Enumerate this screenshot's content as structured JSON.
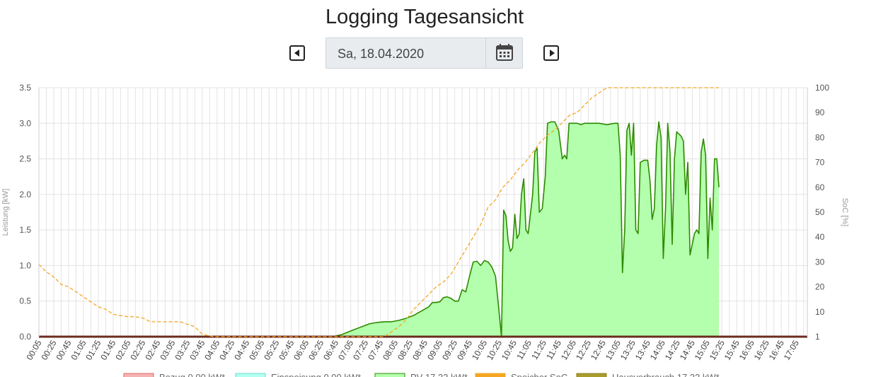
{
  "page": {
    "title": "Logging Tagesansicht"
  },
  "date_nav": {
    "date_value": "Sa, 18.04.2020"
  },
  "icons": {
    "prev": "caret-left-square-icon",
    "next": "caret-right-square-icon",
    "calendar": "calendar-icon"
  },
  "colors": {
    "pv_line": "#2e8b00",
    "pv_fill": "#b3ffad",
    "soc_line": "#f5a623",
    "grid": "#e3e3e3",
    "baseline": "#6b2b20"
  },
  "chart_data": {
    "type": "area",
    "ylabel": "Leistung [kW]",
    "y2label": "SoC [%]",
    "ylim": [
      0,
      3.5
    ],
    "y2lim": [
      0,
      100
    ],
    "y_ticks": [
      "0.0",
      "0.5",
      "1.0",
      "1.5",
      "2.0",
      "2.5",
      "3.0",
      "3.5"
    ],
    "y2_ticks": [
      "1",
      "10",
      "20",
      "30",
      "40",
      "50",
      "60",
      "70",
      "80",
      "90",
      "100"
    ],
    "x_ticks": [
      "00:05",
      "00:25",
      "00:45",
      "01:05",
      "01:25",
      "01:45",
      "02:05",
      "02:25",
      "02:45",
      "03:05",
      "03:25",
      "03:45",
      "04:05",
      "04:25",
      "04:45",
      "05:05",
      "05:25",
      "05:45",
      "06:05",
      "06:25",
      "06:45",
      "07:05",
      "07:25",
      "07:45",
      "08:05",
      "08:25",
      "08:45",
      "09:05",
      "09:25",
      "09:45",
      "10:05",
      "10:25",
      "10:45",
      "11:05",
      "11:25",
      "11:45",
      "12:05",
      "12:25",
      "12:45",
      "13:05",
      "13:25",
      "13:45",
      "14:05",
      "14:25",
      "14:45",
      "15:05",
      "15:25",
      "15:45",
      "16:05",
      "16:25",
      "16:45",
      "17:05"
    ],
    "x_range_minutes": [
      5,
      1040
    ],
    "series": [
      {
        "name": "PV",
        "axis": "left",
        "points": [
          [
            5,
            0
          ],
          [
            400,
            0
          ],
          [
            413,
            0.03
          ],
          [
            420,
            0.06
          ],
          [
            430,
            0.1
          ],
          [
            440,
            0.14
          ],
          [
            450,
            0.18
          ],
          [
            460,
            0.2
          ],
          [
            470,
            0.21
          ],
          [
            480,
            0.21
          ],
          [
            490,
            0.23
          ],
          [
            500,
            0.26
          ],
          [
            510,
            0.3
          ],
          [
            520,
            0.36
          ],
          [
            530,
            0.42
          ],
          [
            535,
            0.48
          ],
          [
            540,
            0.48
          ],
          [
            545,
            0.49
          ],
          [
            550,
            0.55
          ],
          [
            555,
            0.56
          ],
          [
            560,
            0.54
          ],
          [
            565,
            0.5
          ],
          [
            570,
            0.5
          ],
          [
            575,
            0.66
          ],
          [
            580,
            0.63
          ],
          [
            585,
            0.85
          ],
          [
            590,
            1.05
          ],
          [
            595,
            1.06
          ],
          [
            600,
            1.0
          ],
          [
            605,
            1.07
          ],
          [
            610,
            1.05
          ],
          [
            615,
            0.98
          ],
          [
            620,
            0.85
          ],
          [
            625,
            0.32
          ],
          [
            628,
            0.0
          ],
          [
            631,
            1.78
          ],
          [
            634,
            1.7
          ],
          [
            637,
            1.35
          ],
          [
            640,
            1.2
          ],
          [
            643,
            1.25
          ],
          [
            646,
            1.72
          ],
          [
            649,
            1.38
          ],
          [
            652,
            1.45
          ],
          [
            655,
            2.0
          ],
          [
            658,
            2.22
          ],
          [
            661,
            1.5
          ],
          [
            664,
            1.45
          ],
          [
            670,
            2.0
          ],
          [
            673,
            2.6
          ],
          [
            676,
            2.65
          ],
          [
            679,
            1.75
          ],
          [
            683,
            1.8
          ],
          [
            687,
            2.25
          ],
          [
            690,
            3.0
          ],
          [
            695,
            3.02
          ],
          [
            700,
            3.02
          ],
          [
            705,
            2.9
          ],
          [
            710,
            2.5
          ],
          [
            713,
            2.55
          ],
          [
            716,
            2.5
          ],
          [
            719,
            3.0
          ],
          [
            725,
            3.0
          ],
          [
            730,
            3.0
          ],
          [
            735,
            2.98
          ],
          [
            740,
            3.0
          ],
          [
            750,
            3.0
          ],
          [
            760,
            3.0
          ],
          [
            770,
            2.98
          ],
          [
            780,
            3.0
          ],
          [
            785,
            3.0
          ],
          [
            788,
            2.55
          ],
          [
            791,
            0.9
          ],
          [
            794,
            1.5
          ],
          [
            797,
            2.9
          ],
          [
            800,
            3.0
          ],
          [
            803,
            2.55
          ],
          [
            806,
            3.0
          ],
          [
            809,
            1.5
          ],
          [
            812,
            1.45
          ],
          [
            815,
            2.45
          ],
          [
            820,
            2.48
          ],
          [
            825,
            2.48
          ],
          [
            828,
            2.2
          ],
          [
            831,
            1.65
          ],
          [
            834,
            1.8
          ],
          [
            837,
            2.7
          ],
          [
            840,
            3.02
          ],
          [
            843,
            2.8
          ],
          [
            846,
            1.1
          ],
          [
            849,
            1.8
          ],
          [
            852,
            3.0
          ],
          [
            855,
            2.6
          ],
          [
            858,
            1.3
          ],
          [
            861,
            2.5
          ],
          [
            864,
            2.88
          ],
          [
            867,
            2.85
          ],
          [
            870,
            2.82
          ],
          [
            873,
            2.75
          ],
          [
            876,
            2.0
          ],
          [
            879,
            2.45
          ],
          [
            882,
            1.15
          ],
          [
            885,
            1.3
          ],
          [
            888,
            1.45
          ],
          [
            891,
            1.5
          ],
          [
            894,
            1.45
          ],
          [
            897,
            2.6
          ],
          [
            900,
            2.78
          ],
          [
            903,
            2.55
          ],
          [
            906,
            1.1
          ],
          [
            909,
            1.95
          ],
          [
            912,
            1.5
          ],
          [
            915,
            2.5
          ],
          [
            918,
            2.5
          ],
          [
            921,
            2.1
          ]
        ]
      },
      {
        "name": "Speicher SoC",
        "axis": "right",
        "points": [
          [
            5,
            29
          ],
          [
            15,
            26
          ],
          [
            25,
            24
          ],
          [
            35,
            21
          ],
          [
            45,
            20
          ],
          [
            55,
            18
          ],
          [
            65,
            16
          ],
          [
            75,
            14
          ],
          [
            85,
            12
          ],
          [
            95,
            11
          ],
          [
            105,
            9
          ],
          [
            115,
            8.5
          ],
          [
            125,
            8
          ],
          [
            135,
            8
          ],
          [
            145,
            7.5
          ],
          [
            155,
            6
          ],
          [
            165,
            6
          ],
          [
            175,
            6
          ],
          [
            185,
            6
          ],
          [
            195,
            6
          ],
          [
            205,
            5
          ],
          [
            215,
            4
          ],
          [
            225,
            1
          ],
          [
            240,
            0
          ],
          [
            300,
            0
          ],
          [
            400,
            0
          ],
          [
            450,
            0
          ],
          [
            470,
            0
          ],
          [
            480,
            2
          ],
          [
            490,
            4
          ],
          [
            500,
            7
          ],
          [
            510,
            11
          ],
          [
            520,
            14
          ],
          [
            530,
            17
          ],
          [
            540,
            20
          ],
          [
            550,
            22
          ],
          [
            560,
            25
          ],
          [
            570,
            30
          ],
          [
            580,
            35
          ],
          [
            590,
            40
          ],
          [
            600,
            45
          ],
          [
            610,
            52
          ],
          [
            620,
            55
          ],
          [
            630,
            60
          ],
          [
            640,
            63
          ],
          [
            650,
            67
          ],
          [
            660,
            70
          ],
          [
            670,
            74
          ],
          [
            680,
            78
          ],
          [
            690,
            81
          ],
          [
            700,
            83
          ],
          [
            710,
            86
          ],
          [
            720,
            89
          ],
          [
            730,
            90
          ],
          [
            740,
            93
          ],
          [
            750,
            96
          ],
          [
            760,
            98
          ],
          [
            770,
            100
          ],
          [
            800,
            100
          ],
          [
            921,
            100
          ]
        ]
      }
    ],
    "legend_partial": [
      "Bezug 0.00 kW*",
      "Einspeisung 0.00 kW*",
      "PV 17.33 kW*",
      "Speicher SoC",
      "Hausverbrauch 17.33 kW*"
    ]
  }
}
